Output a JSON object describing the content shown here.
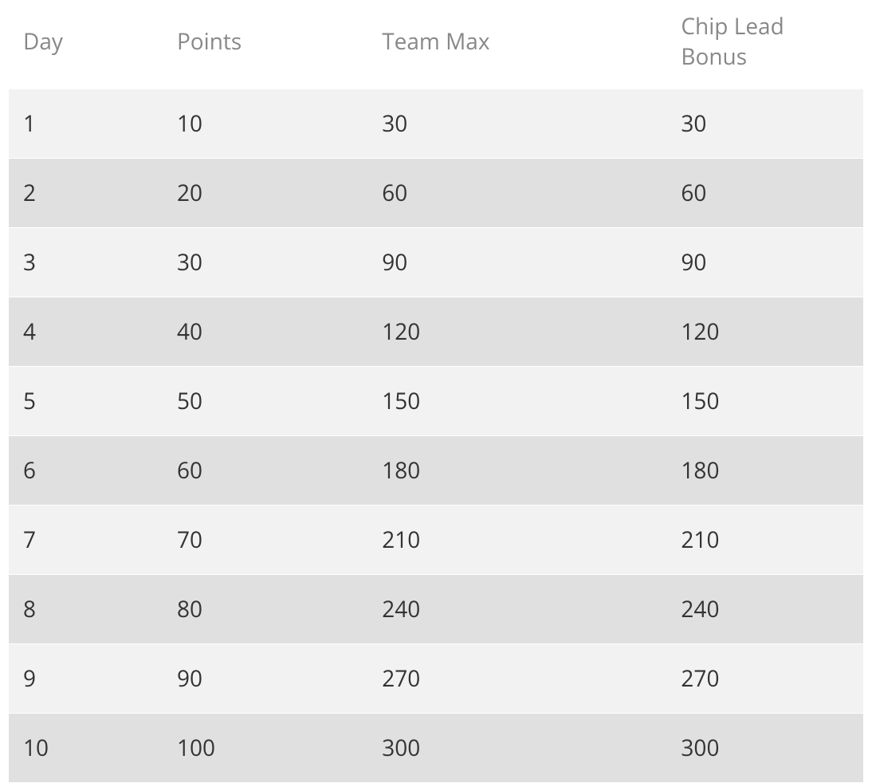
{
  "table": {
    "type": "table",
    "columns": [
      "Day",
      "Points",
      "Team Max",
      "Chip Lead Bonus"
    ],
    "rows": [
      [
        "1",
        "10",
        "30",
        "30"
      ],
      [
        "2",
        "20",
        "60",
        "60"
      ],
      [
        "3",
        "30",
        "90",
        "90"
      ],
      [
        "4",
        "40",
        "120",
        "120"
      ],
      [
        "5",
        "50",
        "150",
        "150"
      ],
      [
        "6",
        "60",
        "180",
        "180"
      ],
      [
        "7",
        "70",
        "210",
        "210"
      ],
      [
        "8",
        "80",
        "240",
        "240"
      ],
      [
        "9",
        "90",
        "270",
        "270"
      ],
      [
        "10",
        "100",
        "300",
        "300"
      ]
    ],
    "header_color": "#888888",
    "cell_color": "#333333",
    "font_size": 28,
    "row_bg_odd": "#f2f2f2",
    "row_bg_even": "#e0e0e0",
    "background_color": "#ffffff",
    "column_widths_pct": [
      18,
      24,
      35,
      23
    ]
  }
}
